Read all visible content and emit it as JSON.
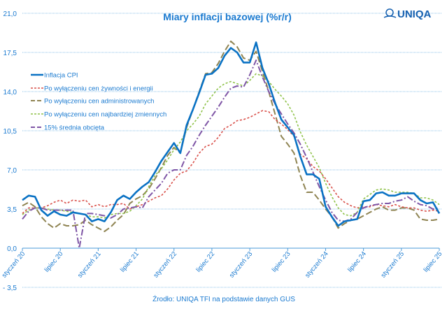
{
  "brand": {
    "name": "UNIQA",
    "color": "#1560b0"
  },
  "chart_data": {
    "type": "line",
    "title": "Miary inflacji bazowej (%r/r)",
    "source": "Źrodło: UNIQA TFI na podstawie danych GUS",
    "xlabel": "",
    "ylabel": "",
    "ylim": [
      -3.5,
      21.0
    ],
    "y_ticks": [
      "21,0",
      "17,5",
      "14,0",
      "10,5",
      "7,0",
      "3,5",
      "0,0",
      "- 3,5"
    ],
    "y_tick_values": [
      21,
      17.5,
      14,
      10.5,
      7,
      3.5,
      0,
      -3.5
    ],
    "grid": true,
    "legend_position": "left",
    "x_start": "2020-01",
    "x_frequency": "monthly",
    "x_tick_labels": [
      "styczeń 20",
      "lipiec 20",
      "styczeń 21",
      "lipiec 21",
      "styczeń 22",
      "lipiec 22",
      "styczeń 23",
      "lipiec 23",
      "styczeń 24",
      "lipiec 24",
      "styczeń 25",
      "lipiec 25"
    ],
    "series": [
      {
        "name": "Inflacja CPI",
        "color": "#0a72c4",
        "style": "solid",
        "values": [
          4.3,
          4.7,
          4.6,
          3.4,
          2.9,
          3.3,
          3.0,
          2.9,
          3.2,
          3.1,
          3.0,
          2.4,
          2.6,
          2.4,
          3.2,
          4.3,
          4.7,
          4.4,
          5.0,
          5.5,
          5.9,
          6.8,
          7.8,
          8.6,
          9.4,
          8.5,
          11.0,
          12.4,
          13.9,
          15.5,
          15.6,
          16.1,
          17.2,
          17.9,
          17.5,
          16.6,
          16.6,
          18.4,
          16.1,
          14.7,
          13.0,
          11.5,
          10.8,
          10.1,
          8.2,
          6.6,
          6.6,
          6.2,
          3.7,
          2.8,
          2.0,
          2.4,
          2.5,
          2.6,
          4.2,
          4.3,
          4.9,
          5.0,
          4.7,
          4.7,
          4.9,
          4.9,
          4.9,
          4.3,
          4.0,
          4.1,
          3.1
        ]
      },
      {
        "name": "Po wyłączeniu cen żywności i energii",
        "color": "#d9504a",
        "style": "dotted",
        "values": [
          3.1,
          3.6,
          3.6,
          3.6,
          3.8,
          4.1,
          4.3,
          4.0,
          4.3,
          4.2,
          4.3,
          3.7,
          3.9,
          3.7,
          3.9,
          3.9,
          4.0,
          3.5,
          3.7,
          3.9,
          4.2,
          4.5,
          4.7,
          5.3,
          6.1,
          6.7,
          6.9,
          7.6,
          8.5,
          9.1,
          9.3,
          9.9,
          10.7,
          11.0,
          11.4,
          11.5,
          11.7,
          12.0,
          12.3,
          12.2,
          11.5,
          11.1,
          10.6,
          10.0,
          8.4,
          8.0,
          7.3,
          6.9,
          6.2,
          5.4,
          4.6,
          4.1,
          3.8,
          3.6,
          3.7,
          3.7,
          3.9,
          3.8,
          3.7,
          3.9,
          3.7,
          3.6,
          3.6,
          3.4,
          3.3,
          3.4,
          3.3
        ]
      },
      {
        "name": "Po wyłączeniu cen administrowanych",
        "color": "#8f8452",
        "style": "long-dash",
        "values": [
          3.8,
          4.1,
          3.7,
          2.8,
          2.2,
          1.8,
          2.2,
          2.0,
          2.0,
          2.1,
          2.5,
          2.1,
          1.8,
          1.5,
          1.9,
          2.5,
          3.0,
          4.0,
          4.4,
          4.7,
          5.3,
          6.2,
          7.2,
          8.3,
          9.0,
          8.5,
          10.8,
          12.4,
          14.0,
          15.6,
          15.7,
          16.5,
          17.6,
          18.5,
          18.0,
          17.0,
          16.8,
          17.6,
          15.8,
          14.0,
          12.0,
          10.0,
          9.3,
          8.5,
          6.5,
          5.0,
          5.0,
          4.3,
          3.5,
          2.8,
          1.8,
          2.2,
          2.5,
          2.6,
          2.9,
          3.2,
          3.5,
          3.7,
          3.4,
          3.4,
          3.6,
          3.6,
          3.4,
          2.6,
          2.5,
          2.5,
          2.6
        ]
      },
      {
        "name": "Po wyłączeniu cen najbardziej zmiennych",
        "color": "#8fc24a",
        "style": "dotted",
        "values": [
          3.0,
          3.4,
          3.6,
          3.6,
          3.5,
          3.4,
          3.4,
          3.3,
          3.2,
          3.1,
          3.0,
          2.8,
          2.8,
          2.7,
          3.0,
          3.1,
          3.1,
          3.3,
          3.8,
          4.4,
          5.5,
          6.5,
          7.1,
          7.9,
          8.8,
          9.5,
          10.5,
          11.1,
          11.8,
          12.9,
          13.6,
          14.3,
          14.7,
          14.9,
          14.7,
          14.5,
          15.0,
          15.6,
          15.4,
          14.9,
          14.2,
          13.6,
          12.9,
          11.9,
          10.4,
          9.2,
          8.2,
          7.2,
          5.8,
          4.6,
          3.6,
          3.0,
          2.9,
          3.2,
          4.4,
          4.8,
          5.2,
          5.3,
          5.2,
          5.0,
          5.0,
          5.0,
          4.9,
          4.5,
          4.5,
          4.3,
          3.9
        ]
      },
      {
        "name": "15% średnia obcięta",
        "color": "#7f56a6",
        "style": "dash-dot",
        "values": [
          2.6,
          3.3,
          3.6,
          3.6,
          3.4,
          3.4,
          3.4,
          3.4,
          3.4,
          0.0,
          3.1,
          3.1,
          3.0,
          2.9,
          2.7,
          3.0,
          3.5,
          3.6,
          3.7,
          3.6,
          4.6,
          5.2,
          5.8,
          6.7,
          7.0,
          7.0,
          8.3,
          9.1,
          10.1,
          11.0,
          11.8,
          12.6,
          13.5,
          14.3,
          14.5,
          14.4,
          15.5,
          16.8,
          15.3,
          14.0,
          12.9,
          12.0,
          11.1,
          10.3,
          9.3,
          8.1,
          6.8,
          5.5,
          4.3,
          3.2,
          2.5,
          2.4,
          2.6,
          3.2,
          3.6,
          3.8,
          3.9,
          4.0,
          4.0,
          4.2,
          4.3,
          4.6,
          4.2,
          3.9,
          3.8,
          3.5,
          3.6
        ]
      }
    ]
  }
}
